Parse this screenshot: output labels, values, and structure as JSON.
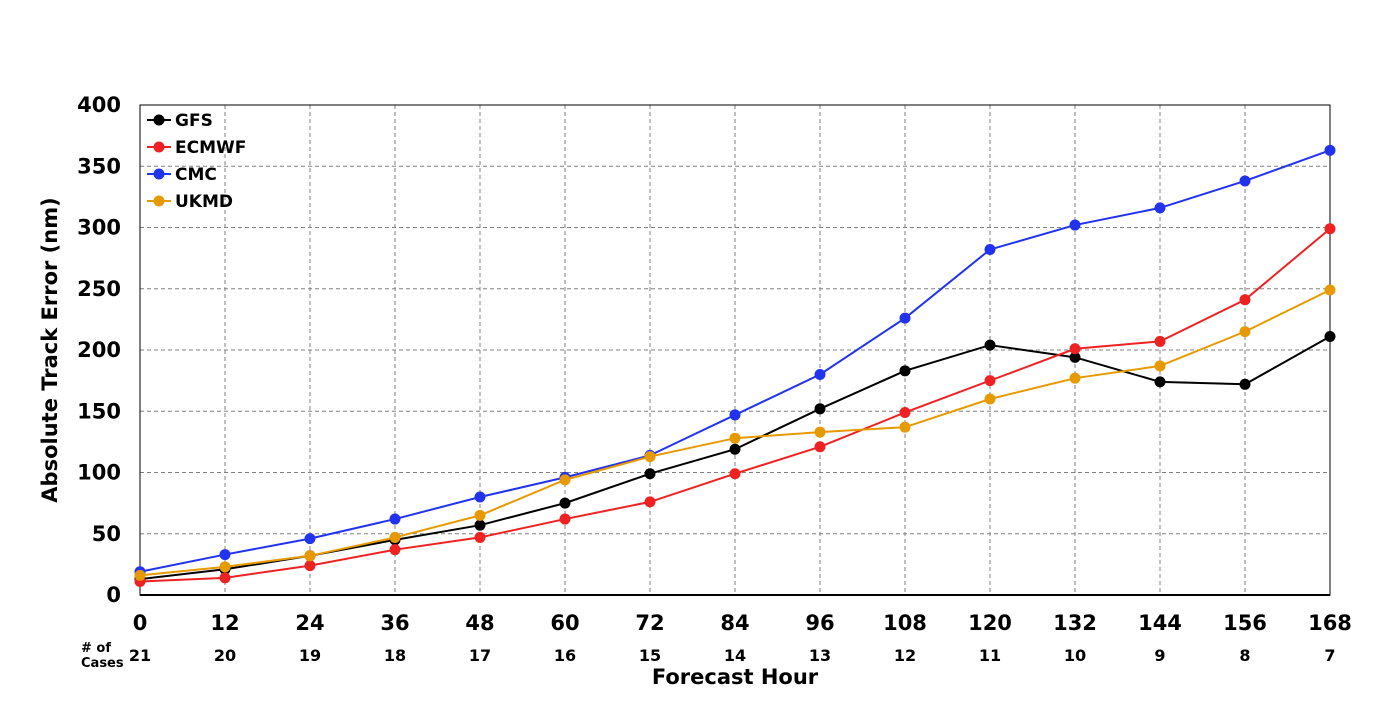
{
  "chart_data": {
    "type": "line",
    "title": "",
    "xlabel": "Forecast Hour",
    "ylabel": "Absolute Track Error (nm)",
    "x": [
      0,
      12,
      24,
      36,
      48,
      60,
      72,
      84,
      96,
      108,
      120,
      132,
      144,
      156,
      168
    ],
    "xlim": [
      0,
      168
    ],
    "ylim": [
      0,
      400
    ],
    "yticks": [
      0,
      50,
      100,
      150,
      200,
      250,
      300,
      350,
      400
    ],
    "grid": true,
    "legend_position": "top-left",
    "cases_label": "# of Cases",
    "cases": [
      21,
      20,
      19,
      18,
      17,
      16,
      15,
      14,
      13,
      12,
      11,
      10,
      9,
      8,
      7
    ],
    "series": [
      {
        "name": "GFS",
        "color": "#000000",
        "values": [
          13,
          21,
          32,
          45,
          57,
          75,
          99,
          119,
          152,
          183,
          204,
          194,
          174,
          172,
          211
        ]
      },
      {
        "name": "ECMWF",
        "color": "#ee2222",
        "values": [
          11,
          14,
          24,
          37,
          47,
          62,
          76,
          99,
          121,
          149,
          175,
          201,
          207,
          241,
          299
        ]
      },
      {
        "name": "CMC",
        "color": "#2233ee",
        "values": [
          19,
          33,
          46,
          62,
          80,
          96,
          114,
          147,
          180,
          226,
          282,
          302,
          316,
          338,
          363
        ]
      },
      {
        "name": "UKMD",
        "color": "#e69a00",
        "values": [
          16,
          23,
          32,
          47,
          65,
          94,
          113,
          128,
          133,
          137,
          160,
          177,
          187,
          215,
          249
        ]
      }
    ]
  }
}
